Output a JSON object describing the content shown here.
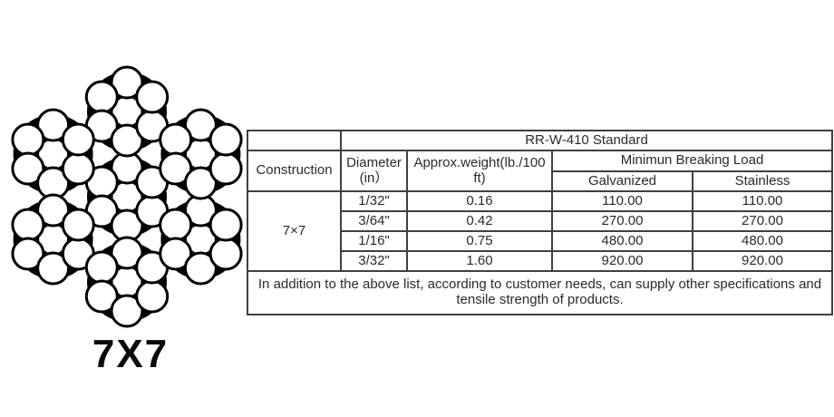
{
  "diagram": {
    "label": "7X7",
    "meaning": "7x7-wire-rope-cross-section",
    "wire_fill": "#ffffff",
    "wire_stroke": "#000000",
    "strand_blob": "#000000"
  },
  "table": {
    "standard_header": "RR-W-410 Standard",
    "headers": {
      "construction": "Construction",
      "diameter": "Diameter (in）",
      "weight": "Approx.weight(lb./100 ft)",
      "breaking_load": "Minimun Breaking Load",
      "galvanized": "Galvanized",
      "stainless": "Stainless"
    },
    "construction_value": "7×7",
    "rows": [
      {
        "diameter": "1/32\"",
        "weight": "0.16",
        "galvanized": "110.00",
        "stainless": "110.00"
      },
      {
        "diameter": "3/64\"",
        "weight": "0.42",
        "galvanized": "270.00",
        "stainless": "270.00"
      },
      {
        "diameter": "1/16\"",
        "weight": "0.75",
        "galvanized": "480.00",
        "stainless": "480.00"
      },
      {
        "diameter": "3/32\"",
        "weight": "1.60",
        "galvanized": "920.00",
        "stainless": "920.00"
      }
    ],
    "note": "In addition to the above list, according to customer needs, can supply other specifications and tensile strength of products."
  }
}
